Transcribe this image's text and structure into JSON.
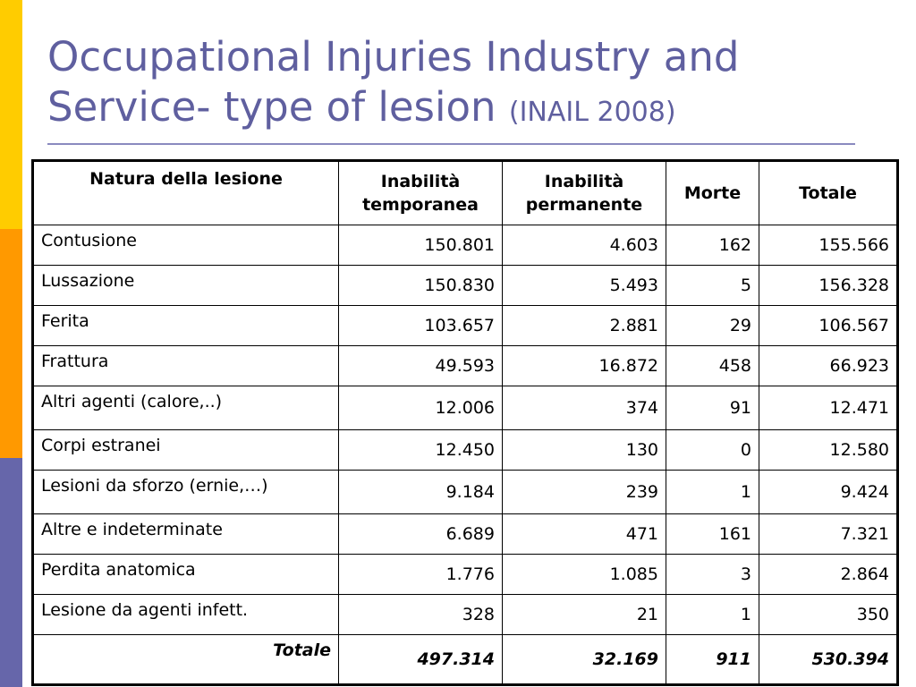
{
  "slide": {
    "title_line1": "Occupational Injuries Industry and",
    "title_line2": "Service- type of lesion",
    "title_source": "(INAIL 2008)",
    "colors": {
      "title": "#5f5f9f",
      "bar_yellow": "#ffcc00",
      "bar_orange": "#ff9900",
      "bar_purple": "#6666aa"
    }
  },
  "table": {
    "headers": [
      "Natura della lesione",
      "Inabilità temporanea",
      "Inabilità permanente",
      "Morte",
      "Totale"
    ],
    "rows": [
      {
        "label": "Contusione",
        "values": [
          "150.801",
          "4.603",
          "162",
          "155.566"
        ]
      },
      {
        "label": "Lussazione",
        "values": [
          "150.830",
          "5.493",
          "5",
          "156.328"
        ]
      },
      {
        "label": "Ferita",
        "values": [
          "103.657",
          "2.881",
          "29",
          "106.567"
        ]
      },
      {
        "label": "Frattura",
        "values": [
          "49.593",
          "16.872",
          "458",
          "66.923"
        ]
      },
      {
        "label": "Altri agenti (calore,..)",
        "values": [
          "12.006",
          "374",
          "91",
          "12.471"
        ]
      },
      {
        "label": "Corpi estranei",
        "values": [
          "12.450",
          "130",
          "0",
          "12.580"
        ]
      },
      {
        "label": "Lesioni da sforzo (ernie,…)",
        "values": [
          "9.184",
          "239",
          "1",
          "9.424"
        ]
      },
      {
        "label": "Altre e indeterminate",
        "values": [
          "6.689",
          "471",
          "161",
          "7.321"
        ]
      },
      {
        "label": "Perdita anatomica",
        "values": [
          "1.776",
          "1.085",
          "3",
          "2.864"
        ]
      },
      {
        "label": "Lesione da agenti infett.",
        "values": [
          "328",
          "21",
          "1",
          "350"
        ]
      }
    ],
    "total": {
      "label": "Totale",
      "values": [
        "497.314",
        "32.169",
        "911",
        "530.394"
      ]
    }
  }
}
